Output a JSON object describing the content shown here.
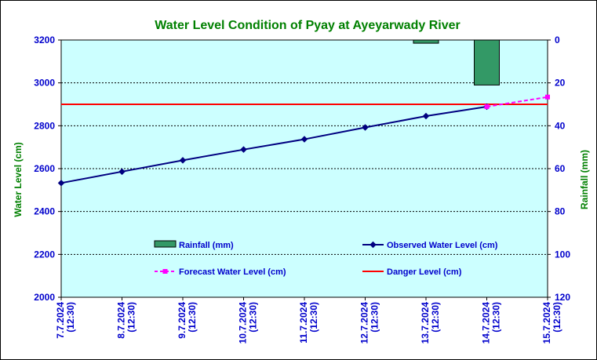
{
  "chart_data": {
    "type": "line",
    "title": "Water Level Condition of Pyay at Ayeyarwady River",
    "ylabel": "Water Level (cm)",
    "y2label": "Rainfall (mm)",
    "ylim": [
      2000,
      3200
    ],
    "y2lim": [
      0,
      120
    ],
    "y2_inverted": true,
    "yticks": [
      "2000",
      "2200",
      "2400",
      "2600",
      "2800",
      "3000",
      "3200"
    ],
    "y2ticks": [
      "0",
      "20",
      "40",
      "60",
      "80",
      "100",
      "120"
    ],
    "categories": [
      [
        "7.7.2024",
        "(12:30)"
      ],
      [
        "8.7.2024",
        "(12:30)"
      ],
      [
        "9.7.2024",
        "(12:30)"
      ],
      [
        "10.7.2024",
        "(12:30)"
      ],
      [
        "11.7.2024",
        "(12:30)"
      ],
      [
        "12.7.2024",
        "(12:30)"
      ],
      [
        "13.7.2024",
        "(12:30)"
      ],
      [
        "14.7.2024",
        "(12:30)"
      ],
      [
        "15.7.2024",
        "(12:30)"
      ]
    ],
    "grid": true,
    "legend_position": "inside-bottom",
    "series": [
      {
        "name": "Rainfall (mm)",
        "type": "bar",
        "axis": "right",
        "color": "#339966",
        "values": [
          0,
          0,
          0,
          0,
          0,
          0,
          1.5,
          21,
          0
        ]
      },
      {
        "name": "Observed Water Level (cm)",
        "type": "line",
        "color": "#000080",
        "values": [
          2533,
          2586,
          2639,
          2689,
          2737,
          2792,
          2845,
          2889,
          null
        ]
      },
      {
        "name": "Forecast Water Level (cm)",
        "type": "line",
        "dashed": true,
        "color": "#ff00ff",
        "values": [
          null,
          null,
          null,
          null,
          null,
          null,
          null,
          2889,
          2934
        ]
      },
      {
        "name": "Danger Level (cm)",
        "type": "hline",
        "color": "#ff0000",
        "value": 2900
      }
    ],
    "colors": {
      "plot_background": "#ccffff",
      "tick_text": "#0000cc",
      "title_text": "#008000"
    }
  }
}
